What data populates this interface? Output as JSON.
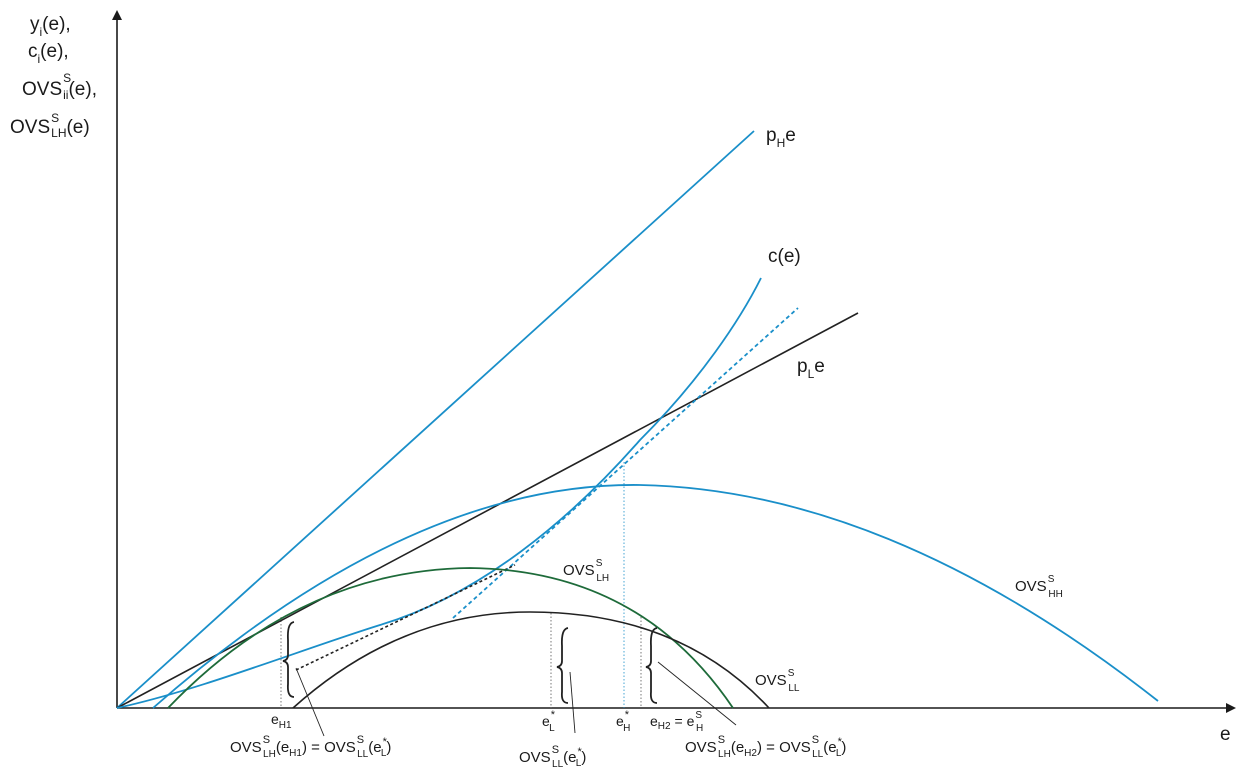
{
  "y_axis": {
    "lines": [
      {
        "t": "y",
        "sub": "i",
        "rest": "(e),"
      },
      {
        "t": "c",
        "sub": "i",
        "rest": "(e),"
      },
      {
        "t": "OVS",
        "sup": "S",
        "sub": "ii",
        "rest": "(e),"
      },
      {
        "t": "OVS",
        "sup": "S",
        "sub": "LH",
        "rest": "(e)"
      }
    ]
  },
  "x_axis": {
    "label": "e"
  },
  "curves": {
    "pH": {
      "base": "p",
      "sub": "H",
      "rest": "e",
      "color": "#1a8fc9"
    },
    "c": {
      "text": "c(e)",
      "color": "#1a8fc9"
    },
    "pL": {
      "base": "p",
      "sub": "L",
      "rest": "e",
      "color": "#222222"
    },
    "ovs_lh": {
      "base": "OVS",
      "sup": "S",
      "sub": "LH",
      "color": "#1e6b3a"
    },
    "ovs_hh": {
      "base": "OVS",
      "sup": "S",
      "sub": "HH",
      "color": "#1a8fc9"
    },
    "ovs_ll": {
      "base": "OVS",
      "sup": "S",
      "sub": "LL",
      "color": "#222222"
    }
  },
  "ticks": {
    "eH1": {
      "base": "e",
      "sub": "H1"
    },
    "eL": {
      "base": "e",
      "sup": "*",
      "sub": "L"
    },
    "eH": {
      "base": "e",
      "sup": "*",
      "sub": "H"
    },
    "eH2": {
      "left_base": "e",
      "left_sub": "H2",
      "eq": " = ",
      "right_base": "e",
      "right_sup": "S",
      "right_sub": "H"
    }
  },
  "annotations": {
    "a1": {
      "l_base": "OVS",
      "l_sup": "S",
      "l_sub": "LH",
      "l_arg": "(e",
      "l_arg_sub": "H1",
      "l_close": ")",
      "eq": " = ",
      "r_base": "OVS",
      "r_sup": "S",
      "r_sub": "LL",
      "r_arg": "(e",
      "r_arg_sup": "*",
      "r_arg_sub": "L",
      "r_close": ")"
    },
    "a2": {
      "base": "OVS",
      "sup": "S",
      "sub": "LL",
      "arg": "(e",
      "arg_sup": "*",
      "arg_sub": "L",
      "close": ")"
    },
    "a3": {
      "l_base": "OVS",
      "l_sup": "S",
      "l_sub": "LH",
      "l_arg": "(e",
      "l_arg_sub": "H2",
      "l_close": ")",
      "eq": " = ",
      "r_base": "OVS",
      "r_sup": "S",
      "r_sub": "LL",
      "r_arg": "(e",
      "r_arg_sup": "*",
      "r_arg_sub": "L",
      "r_close": ")"
    }
  },
  "colors": {
    "blue": "#1a8fc9",
    "green": "#1e6b3a",
    "black": "#222222",
    "axis": "#1a1a1a"
  }
}
